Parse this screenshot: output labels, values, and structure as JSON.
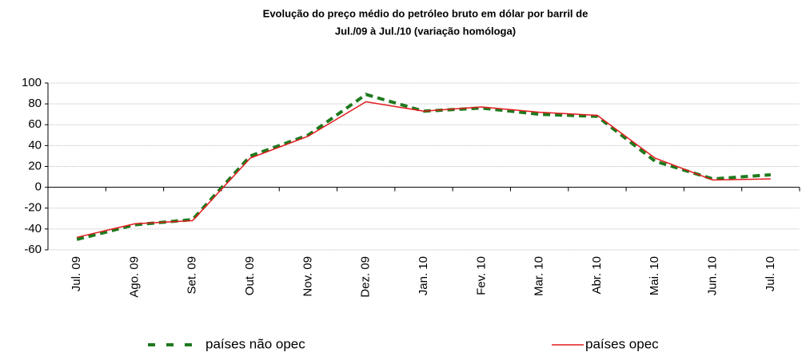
{
  "chart_data": {
    "type": "line",
    "title": [
      "Evolução do preço médio do petróleo bruto em dólar por barril de",
      "Jul./09 à Jul./10 (variação homóloga)"
    ],
    "categories": [
      "Jul. 09",
      "Ago. 09",
      "Set. 09",
      "Out. 09",
      "Nov. 09",
      "Dez. 09",
      "Jan. 10",
      "Fev. 10",
      "Mar. 10",
      "Abr. 10",
      "Mai. 10",
      "Jun. 10",
      "Jul. 10"
    ],
    "series": [
      {
        "name": "países não opec",
        "color": "#1e7a1e",
        "dashed": true,
        "values": [
          -50,
          -36,
          -31,
          30,
          50,
          89,
          73,
          76,
          70,
          68,
          25,
          8,
          12
        ]
      },
      {
        "name": "países opec",
        "color": "#e31a1c",
        "dashed": false,
        "values": [
          -48,
          -35,
          -32,
          28,
          49,
          82,
          73,
          77,
          72,
          69,
          28,
          7,
          8
        ]
      }
    ],
    "ylim": [
      -60,
      100
    ],
    "yticks": [
      -60,
      -40,
      -20,
      0,
      20,
      40,
      60,
      80,
      100
    ],
    "grid": true
  }
}
